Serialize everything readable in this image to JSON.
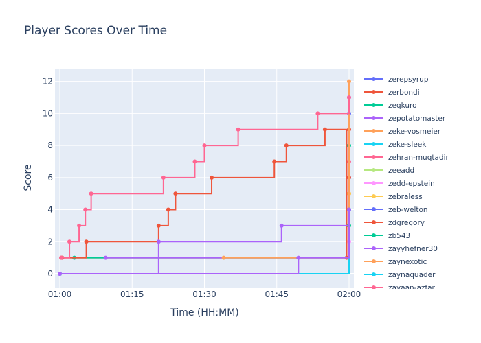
{
  "chart_data": {
    "type": "line",
    "line_shape": "step",
    "title": "Player Scores Over Time",
    "xlabel": "Time (HH:MM)",
    "ylabel": "Score",
    "x_ticks": [
      "01:00",
      "01:15",
      "01:30",
      "01:45",
      "02:00"
    ],
    "x_tick_minutes": [
      60,
      75,
      90,
      105,
      120
    ],
    "xlim": [
      59,
      121
    ],
    "y_ticks": [
      0,
      2,
      4,
      6,
      8,
      10,
      12
    ],
    "ylim": [
      -0.9,
      12.8
    ],
    "grid": true,
    "legend_position": "right",
    "series": [
      {
        "name": "zerepsyrup",
        "color": "#636efa",
        "x": [
          60.0,
          120.0
        ],
        "y": [
          0,
          10
        ]
      },
      {
        "name": "zerbondi",
        "color": "#EF553B",
        "x": [
          60.5,
          120.0
        ],
        "y": [
          1,
          9
        ]
      },
      {
        "name": "zeqkuro",
        "color": "#00cc96",
        "x": [
          63.0,
          120.0
        ],
        "y": [
          1,
          8
        ]
      },
      {
        "name": "zepotatomaster",
        "color": "#ab63fa",
        "x": [
          69.5,
          120.0
        ],
        "y": [
          1,
          11
        ]
      },
      {
        "name": "zeke-vosmeier",
        "color": "#FFA15A",
        "x": [
          60.0,
          120.0
        ],
        "y": [
          0,
          5
        ]
      },
      {
        "name": "zeke-sleek",
        "color": "#19d3f3",
        "x": [
          60.0,
          120.0
        ],
        "y": [
          0,
          4
        ]
      },
      {
        "name": "zehran-muqtadir",
        "color": "#FF6692",
        "x": [
          60.0,
          120.0
        ],
        "y": [
          0,
          7
        ]
      },
      {
        "name": "zeeadd",
        "color": "#B6E880",
        "x": [
          60.0,
          120.0
        ],
        "y": [
          0,
          3
        ]
      },
      {
        "name": "zedd-epstein",
        "color": "#FF97FF",
        "x": [
          60.0,
          120.0
        ],
        "y": [
          0,
          2
        ]
      },
      {
        "name": "zebraless",
        "color": "#FECB52",
        "x": [
          60.0,
          120.0
        ],
        "y": [
          0,
          5
        ]
      },
      {
        "name": "zeb-welton",
        "color": "#636efa",
        "x": [
          60.0,
          120.0
        ],
        "y": [
          0,
          6
        ]
      },
      {
        "name": "zdgregory",
        "color": "#EF553B",
        "x": [
          60.3,
          65.5,
          80.5,
          82.5,
          84.0,
          91.5,
          104.5,
          107.0,
          115.0,
          119.5,
          120.0
        ],
        "y": [
          1,
          2,
          3,
          4,
          5,
          6,
          7,
          8,
          9,
          1,
          6
        ]
      },
      {
        "name": "zb543",
        "color": "#00cc96",
        "x": [
          60.0,
          120.0
        ],
        "y": [
          0,
          3
        ]
      },
      {
        "name": "zayyhefner30",
        "color": "#ab63fa",
        "x": [
          60.0,
          80.5,
          106.0,
          120.0
        ],
        "y": [
          0,
          2,
          3,
          4
        ]
      },
      {
        "name": "zaynexotic",
        "color": "#FFA15A",
        "x": [
          94.0,
          120.0
        ],
        "y": [
          1,
          12
        ]
      },
      {
        "name": "zaynaquader",
        "color": "#19d3f3",
        "x": [
          60.0,
          120.0
        ],
        "y": [
          0,
          4
        ]
      },
      {
        "name": "zayaan-azfar",
        "color": "#FF6692",
        "x": [
          60.3,
          62.0,
          64.0,
          65.3,
          66.5,
          81.5,
          88.0,
          90.0,
          97.0,
          113.5,
          120.0
        ],
        "y": [
          1,
          2,
          3,
          4,
          5,
          6,
          7,
          8,
          9,
          10,
          11
        ]
      },
      {
        "name": "",
        "color": "#ab63fa",
        "x": [
          60.0,
          109.5,
          120.0
        ],
        "y": [
          0,
          1,
          4
        ]
      }
    ]
  }
}
